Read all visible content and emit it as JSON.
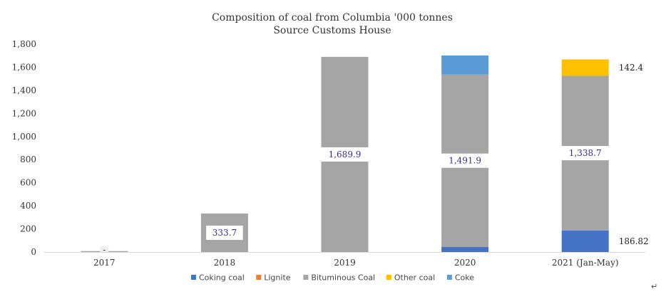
{
  "chart_data": {
    "type": "bar",
    "stacked": true,
    "title": [
      "Composition of coal from Columbia '000 tonnes",
      "Source Customs House"
    ],
    "categories": [
      "2017",
      "2018",
      "2019",
      "2020",
      "2021 (Jan-May)"
    ],
    "ylim": [
      0,
      1800
    ],
    "yticks": [
      0,
      200,
      400,
      600,
      800,
      1000,
      1200,
      1400,
      1600,
      1800
    ],
    "ytick_labels": [
      "0",
      "200",
      "400",
      "600",
      "800",
      "1,000",
      "1,200",
      "1,400",
      "1,600",
      "1,800"
    ],
    "grid": false,
    "legend_position": "bottom",
    "series": [
      {
        "name": "Coking coal",
        "color": "#4472c4",
        "values": [
          0,
          0,
          0,
          45,
          186.82
        ]
      },
      {
        "name": "Lignite",
        "color": "#ed7d31",
        "values": [
          0,
          0,
          0,
          0,
          0
        ]
      },
      {
        "name": "Bituminous Coal",
        "color": "#a5a5a5",
        "values": [
          8,
          333.7,
          1689.9,
          1491.9,
          1338.7
        ]
      },
      {
        "name": "Other coal",
        "color": "#ffc000",
        "values": [
          0,
          0,
          0,
          0,
          142.4
        ]
      },
      {
        "name": "Coke",
        "color": "#5b9bd5",
        "values": [
          0,
          0,
          0,
          165,
          0
        ]
      }
    ],
    "data_labels": [
      {
        "category": "2017",
        "series": "Bituminous Coal",
        "text": "-",
        "style": "plain"
      },
      {
        "category": "2018",
        "series": "Bituminous Coal",
        "text": "333.7",
        "style": "boxed"
      },
      {
        "category": "2019",
        "series": "Bituminous Coal",
        "text": "1,689.9",
        "style": "boxed"
      },
      {
        "category": "2020",
        "series": "Bituminous Coal",
        "text": "1,491.9",
        "style": "boxed"
      },
      {
        "category": "2021 (Jan-May)",
        "series": "Bituminous Coal",
        "text": "1,338.7",
        "style": "boxed"
      },
      {
        "category": "2021 (Jan-May)",
        "series": "Other coal",
        "text": "142.4",
        "style": "outside"
      },
      {
        "category": "2021 (Jan-May)",
        "series": "Coking coal",
        "text": "186.82",
        "style": "outside"
      }
    ]
  },
  "page": {
    "corner_glyph": "↵"
  }
}
